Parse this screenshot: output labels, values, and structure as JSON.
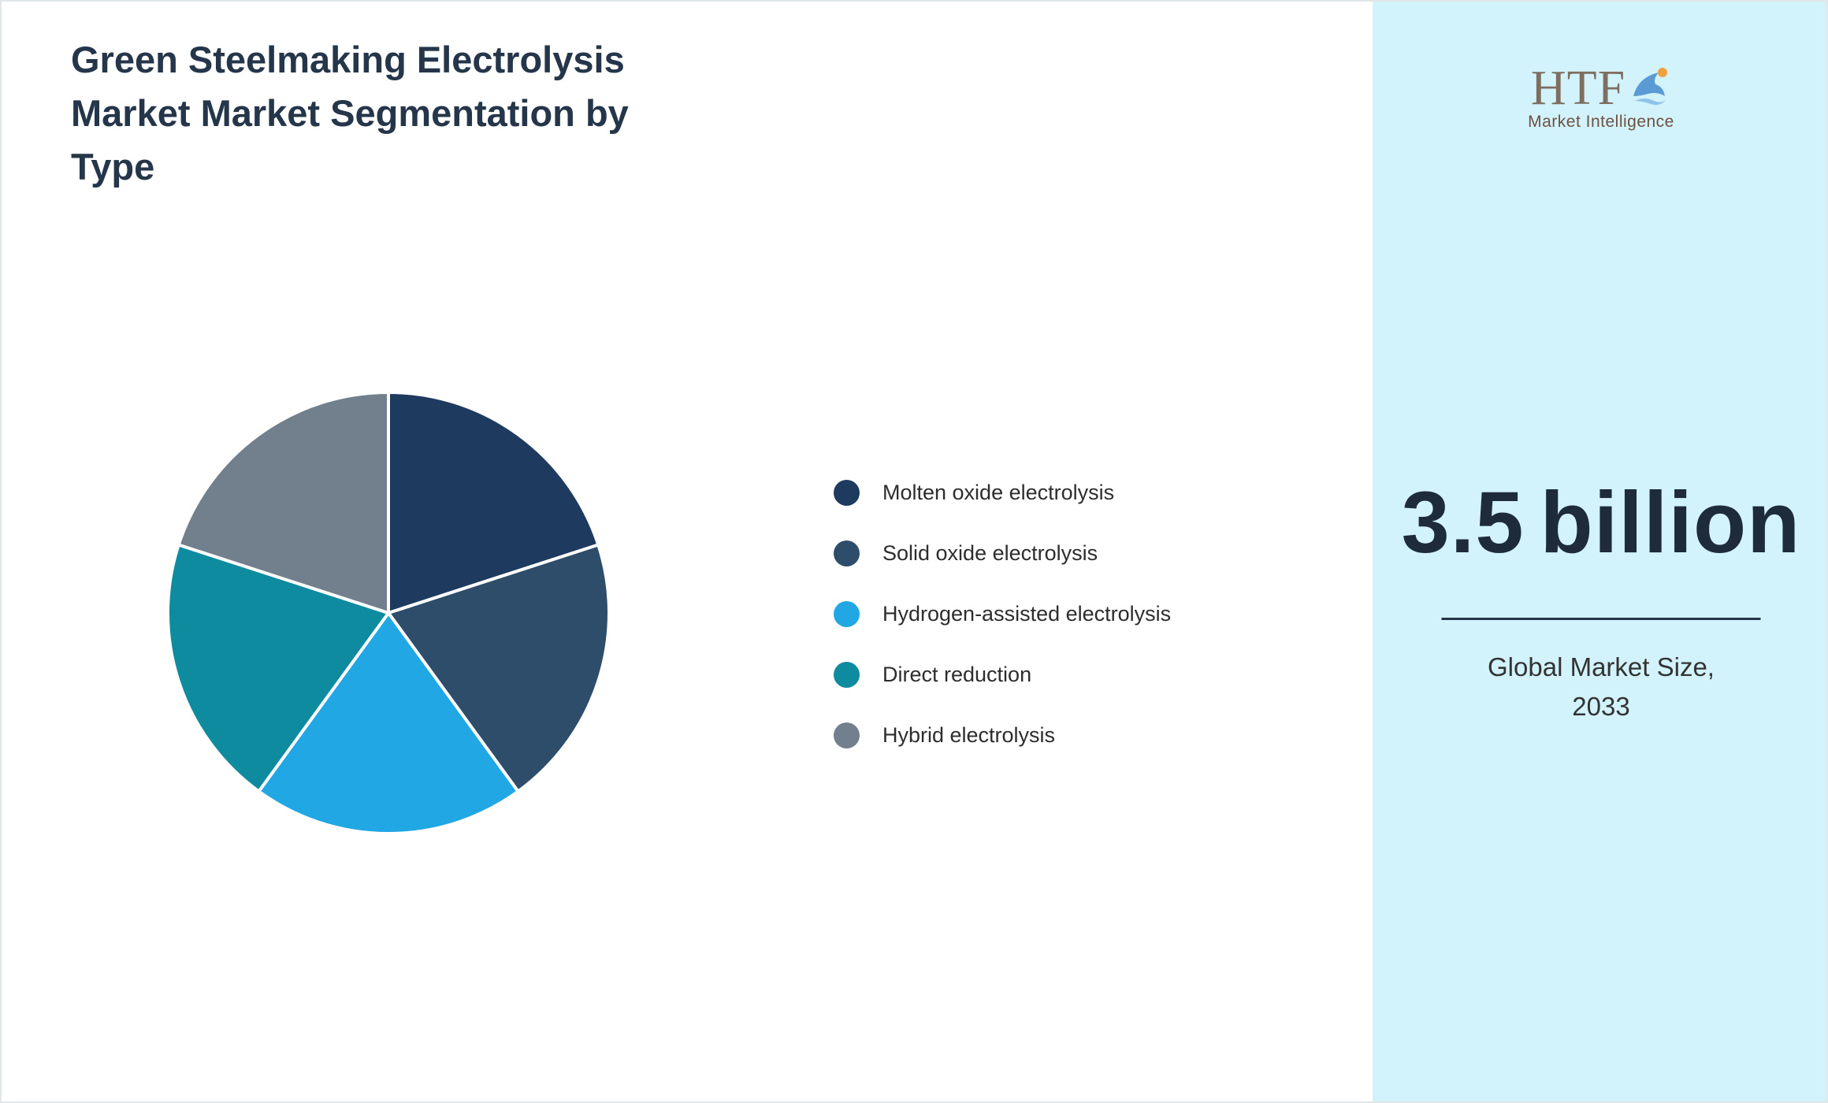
{
  "title": "Green Steelmaking Electrolysis\nMarket Market Segmentation by\nType",
  "chart_data": {
    "type": "pie",
    "title": "Green Steelmaking Electrolysis Market Market Segmentation by Type",
    "start_angle_deg": 0,
    "direction": "clockwise",
    "legend_position": "right",
    "segments": [
      {
        "label": "Molten oxide electrolysis",
        "value": 20,
        "color": "#1e3a5f"
      },
      {
        "label": "Solid oxide electrolysis",
        "value": 20,
        "color": "#2e4d6b"
      },
      {
        "label": "Hydrogen-assisted electrolysis",
        "value": 20,
        "color": "#22a7e5"
      },
      {
        "label": "Direct reduction",
        "value": 20,
        "color": "#0f8ba0"
      },
      {
        "label": "Hybrid electrolysis",
        "value": 20,
        "color": "#72808e"
      }
    ]
  },
  "panel": {
    "logo_text": "HTF",
    "logo_subtext": "Market Intelligence",
    "market_size_value": "3.5",
    "market_size_unit": "billion",
    "market_label": "Global Market Size,\n2033",
    "background_color": "#d2f3fb",
    "accent_text_color": "#1e2b3a"
  }
}
